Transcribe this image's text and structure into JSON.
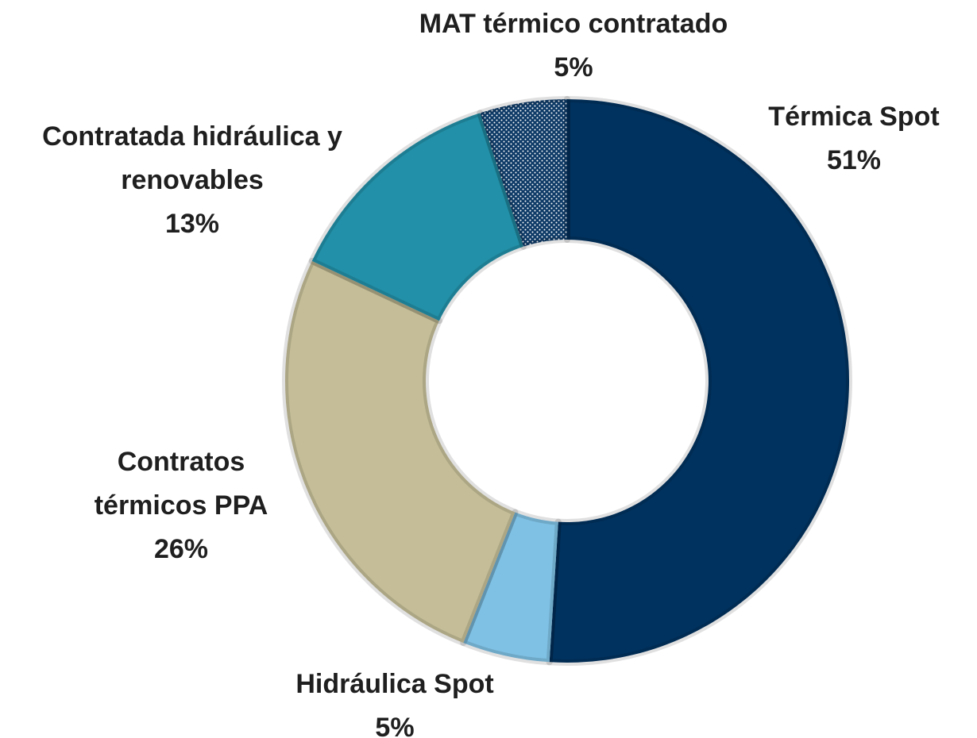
{
  "chart_data": {
    "type": "donut",
    "categories": [
      "Térmica Spot",
      "Hidráulica Spot",
      "Contratos térmicos PPA",
      "Contratada hidráulica y renovables",
      "MAT térmico contratado"
    ],
    "values": [
      51,
      5,
      26,
      13,
      5
    ],
    "value_labels": [
      "51%",
      "5%",
      "26%",
      "13%",
      "5%"
    ],
    "colors": [
      "#00325f",
      "#7fc1e4",
      "#c4bd97",
      "#2290a8",
      "#0d3a66"
    ],
    "patterned": [
      false,
      false,
      false,
      false,
      true
    ]
  }
}
